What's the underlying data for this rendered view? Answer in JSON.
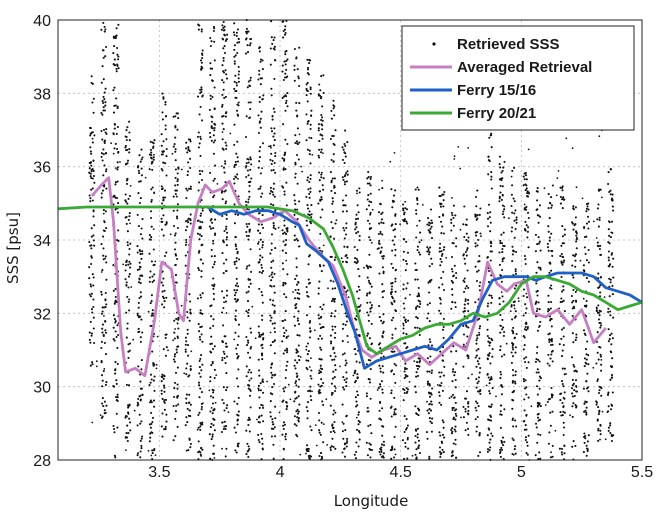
{
  "chart_data": {
    "type": "scatter",
    "xlabel": "Longitude",
    "ylabel": "SSS [psu]",
    "xlim": [
      3.08,
      5.5
    ],
    "ylim": [
      28,
      40
    ],
    "x_ticks": [
      "3.5",
      "4",
      "4.5",
      "5",
      "5.5"
    ],
    "x_tick_values": [
      3.5,
      4,
      4.5,
      5,
      5.5
    ],
    "y_ticks": [
      "28",
      "30",
      "32",
      "34",
      "36",
      "38",
      "40"
    ],
    "y_tick_values": [
      28,
      30,
      32,
      34,
      36,
      38,
      40
    ],
    "grid": true,
    "legend_position": "top-right",
    "scatter_series": {
      "name": "Retrieved SSS",
      "color": "#111111",
      "column_spacing": 0.05,
      "x_range": [
        3.22,
        5.38
      ],
      "column_ranges": [
        {
          "x": 3.22,
          "y": [
            30.5,
            38.5
          ]
        },
        {
          "x": 3.27,
          "y": [
            29.0,
            40.0
          ]
        },
        {
          "x": 3.32,
          "y": [
            28.0,
            40.0
          ]
        },
        {
          "x": 3.37,
          "y": [
            28.5,
            37.5
          ]
        },
        {
          "x": 3.42,
          "y": [
            28.0,
            36.5
          ]
        },
        {
          "x": 3.47,
          "y": [
            28.0,
            37.0
          ]
        },
        {
          "x": 3.52,
          "y": [
            28.5,
            38.0
          ]
        },
        {
          "x": 3.57,
          "y": [
            28.5,
            37.5
          ]
        },
        {
          "x": 3.62,
          "y": [
            28.0,
            37.0
          ]
        },
        {
          "x": 3.67,
          "y": [
            28.0,
            40.0
          ]
        },
        {
          "x": 3.72,
          "y": [
            28.0,
            40.0
          ]
        },
        {
          "x": 3.77,
          "y": [
            28.0,
            40.0
          ]
        },
        {
          "x": 3.82,
          "y": [
            28.0,
            40.0
          ]
        },
        {
          "x": 3.87,
          "y": [
            28.0,
            40.0
          ]
        },
        {
          "x": 3.92,
          "y": [
            28.0,
            39.5
          ]
        },
        {
          "x": 3.97,
          "y": [
            28.0,
            40.0
          ]
        },
        {
          "x": 4.02,
          "y": [
            28.0,
            40.0
          ]
        },
        {
          "x": 4.07,
          "y": [
            28.5,
            39.5
          ]
        },
        {
          "x": 4.12,
          "y": [
            28.0,
            39.0
          ]
        },
        {
          "x": 4.17,
          "y": [
            28.0,
            38.5
          ]
        },
        {
          "x": 4.22,
          "y": [
            28.0,
            38.0
          ]
        },
        {
          "x": 4.27,
          "y": [
            28.0,
            37.0
          ]
        },
        {
          "x": 4.32,
          "y": [
            28.0,
            35.5
          ]
        },
        {
          "x": 4.37,
          "y": [
            28.0,
            36.0
          ]
        },
        {
          "x": 4.42,
          "y": [
            28.0,
            35.5
          ]
        },
        {
          "x": 4.47,
          "y": [
            28.0,
            35.5
          ]
        },
        {
          "x": 4.52,
          "y": [
            28.0,
            35.0
          ]
        },
        {
          "x": 4.57,
          "y": [
            28.0,
            35.5
          ]
        },
        {
          "x": 4.62,
          "y": [
            28.0,
            35.0
          ]
        },
        {
          "x": 4.67,
          "y": [
            28.0,
            35.5
          ]
        },
        {
          "x": 4.72,
          "y": [
            28.0,
            35.0
          ]
        },
        {
          "x": 4.77,
          "y": [
            28.5,
            35.0
          ]
        },
        {
          "x": 4.82,
          "y": [
            28.0,
            35.5
          ]
        },
        {
          "x": 4.87,
          "y": [
            28.0,
            37.0
          ]
        },
        {
          "x": 4.92,
          "y": [
            28.0,
            36.5
          ]
        },
        {
          "x": 4.97,
          "y": [
            28.0,
            36.0
          ]
        },
        {
          "x": 5.02,
          "y": [
            28.0,
            36.0
          ]
        },
        {
          "x": 5.07,
          "y": [
            28.0,
            35.5
          ]
        },
        {
          "x": 5.12,
          "y": [
            28.0,
            35.5
          ]
        },
        {
          "x": 5.17,
          "y": [
            28.0,
            35.5
          ]
        },
        {
          "x": 5.22,
          "y": [
            28.0,
            35.0
          ]
        },
        {
          "x": 5.27,
          "y": [
            28.0,
            35.0
          ]
        },
        {
          "x": 5.32,
          "y": [
            28.5,
            35.5
          ]
        },
        {
          "x": 5.37,
          "y": [
            28.5,
            36.0
          ]
        }
      ]
    },
    "series": [
      {
        "name": "Averaged Retrieval",
        "color": "#c77fc3",
        "points": [
          [
            3.22,
            35.2
          ],
          [
            3.26,
            35.5
          ],
          [
            3.29,
            35.7
          ],
          [
            3.31,
            34.5
          ],
          [
            3.34,
            31.5
          ],
          [
            3.36,
            30.4
          ],
          [
            3.4,
            30.5
          ],
          [
            3.44,
            30.3
          ],
          [
            3.48,
            31.8
          ],
          [
            3.51,
            33.4
          ],
          [
            3.55,
            33.2
          ],
          [
            3.58,
            32.0
          ],
          [
            3.6,
            31.8
          ],
          [
            3.63,
            34.0
          ],
          [
            3.66,
            35.0
          ],
          [
            3.69,
            35.5
          ],
          [
            3.72,
            35.3
          ],
          [
            3.76,
            35.4
          ],
          [
            3.79,
            35.6
          ],
          [
            3.83,
            35.0
          ],
          [
            3.87,
            34.7
          ],
          [
            3.92,
            34.5
          ],
          [
            3.97,
            34.6
          ],
          [
            4.02,
            34.8
          ],
          [
            4.07,
            34.5
          ],
          [
            4.12,
            34.0
          ],
          [
            4.17,
            33.6
          ],
          [
            4.22,
            33.3
          ],
          [
            4.27,
            32.5
          ],
          [
            4.31,
            31.5
          ],
          [
            4.34,
            31.0
          ],
          [
            4.38,
            30.8
          ],
          [
            4.43,
            31.0
          ],
          [
            4.48,
            31.1
          ],
          [
            4.52,
            30.7
          ],
          [
            4.57,
            30.9
          ],
          [
            4.62,
            30.6
          ],
          [
            4.67,
            30.9
          ],
          [
            4.72,
            31.2
          ],
          [
            4.77,
            31.0
          ],
          [
            4.82,
            32.0
          ],
          [
            4.86,
            33.4
          ],
          [
            4.9,
            32.8
          ],
          [
            4.94,
            32.6
          ],
          [
            4.97,
            32.8
          ],
          [
            5.02,
            32.9
          ],
          [
            5.05,
            32.0
          ],
          [
            5.1,
            31.9
          ],
          [
            5.15,
            32.1
          ],
          [
            5.2,
            31.7
          ],
          [
            5.25,
            32.1
          ],
          [
            5.3,
            31.2
          ],
          [
            5.35,
            31.6
          ]
        ]
      },
      {
        "name": "Ferry 15/16",
        "color": "#1f5fc8",
        "points": [
          [
            3.7,
            34.9
          ],
          [
            3.75,
            34.7
          ],
          [
            3.8,
            34.8
          ],
          [
            3.85,
            34.7
          ],
          [
            3.9,
            34.8
          ],
          [
            3.95,
            34.8
          ],
          [
            4.0,
            34.7
          ],
          [
            4.05,
            34.5
          ],
          [
            4.08,
            34.4
          ],
          [
            4.11,
            33.9
          ],
          [
            4.15,
            33.7
          ],
          [
            4.2,
            33.4
          ],
          [
            4.24,
            32.8
          ],
          [
            4.28,
            32.0
          ],
          [
            4.31,
            31.5
          ],
          [
            4.35,
            30.5
          ],
          [
            4.4,
            30.7
          ],
          [
            4.45,
            30.8
          ],
          [
            4.5,
            30.9
          ],
          [
            4.55,
            31.0
          ],
          [
            4.6,
            31.1
          ],
          [
            4.65,
            31.0
          ],
          [
            4.7,
            31.3
          ],
          [
            4.75,
            31.7
          ],
          [
            4.8,
            31.8
          ],
          [
            4.84,
            32.4
          ],
          [
            4.88,
            32.9
          ],
          [
            4.93,
            33.0
          ],
          [
            4.97,
            33.0
          ],
          [
            5.02,
            33.0
          ],
          [
            5.06,
            32.9
          ],
          [
            5.1,
            33.0
          ],
          [
            5.15,
            33.1
          ],
          [
            5.2,
            33.1
          ],
          [
            5.25,
            33.1
          ],
          [
            5.3,
            33.0
          ],
          [
            5.35,
            32.7
          ],
          [
            5.4,
            32.6
          ],
          [
            5.45,
            32.5
          ],
          [
            5.5,
            32.3
          ]
        ]
      },
      {
        "name": "Ferry 20/21",
        "color": "#3aaa35",
        "points": [
          [
            3.08,
            34.85
          ],
          [
            3.2,
            34.9
          ],
          [
            3.4,
            34.9
          ],
          [
            3.6,
            34.9
          ],
          [
            3.8,
            34.9
          ],
          [
            3.95,
            34.9
          ],
          [
            4.05,
            34.8
          ],
          [
            4.12,
            34.6
          ],
          [
            4.18,
            34.3
          ],
          [
            4.22,
            33.8
          ],
          [
            4.26,
            33.2
          ],
          [
            4.3,
            32.5
          ],
          [
            4.33,
            31.8
          ],
          [
            4.36,
            31.1
          ],
          [
            4.4,
            30.9
          ],
          [
            4.45,
            31.1
          ],
          [
            4.5,
            31.3
          ],
          [
            4.55,
            31.4
          ],
          [
            4.6,
            31.6
          ],
          [
            4.65,
            31.7
          ],
          [
            4.7,
            31.7
          ],
          [
            4.75,
            31.8
          ],
          [
            4.8,
            32.0
          ],
          [
            4.85,
            31.9
          ],
          [
            4.9,
            32.0
          ],
          [
            4.95,
            32.3
          ],
          [
            5.0,
            32.8
          ],
          [
            5.05,
            33.0
          ],
          [
            5.1,
            33.0
          ],
          [
            5.15,
            32.9
          ],
          [
            5.2,
            32.8
          ],
          [
            5.25,
            32.6
          ],
          [
            5.3,
            32.5
          ],
          [
            5.35,
            32.3
          ],
          [
            5.4,
            32.1
          ],
          [
            5.45,
            32.2
          ],
          [
            5.5,
            32.3
          ]
        ]
      }
    ],
    "legend": [
      {
        "label": "Retrieved SSS",
        "marker": "dot",
        "color": "#111111"
      },
      {
        "label": "Averaged Retrieval",
        "marker": "line",
        "color": "#c77fc3"
      },
      {
        "label": "Ferry 15/16",
        "marker": "line",
        "color": "#1f5fc8"
      },
      {
        "label": "Ferry 20/21",
        "marker": "line",
        "color": "#3aaa35"
      }
    ]
  }
}
